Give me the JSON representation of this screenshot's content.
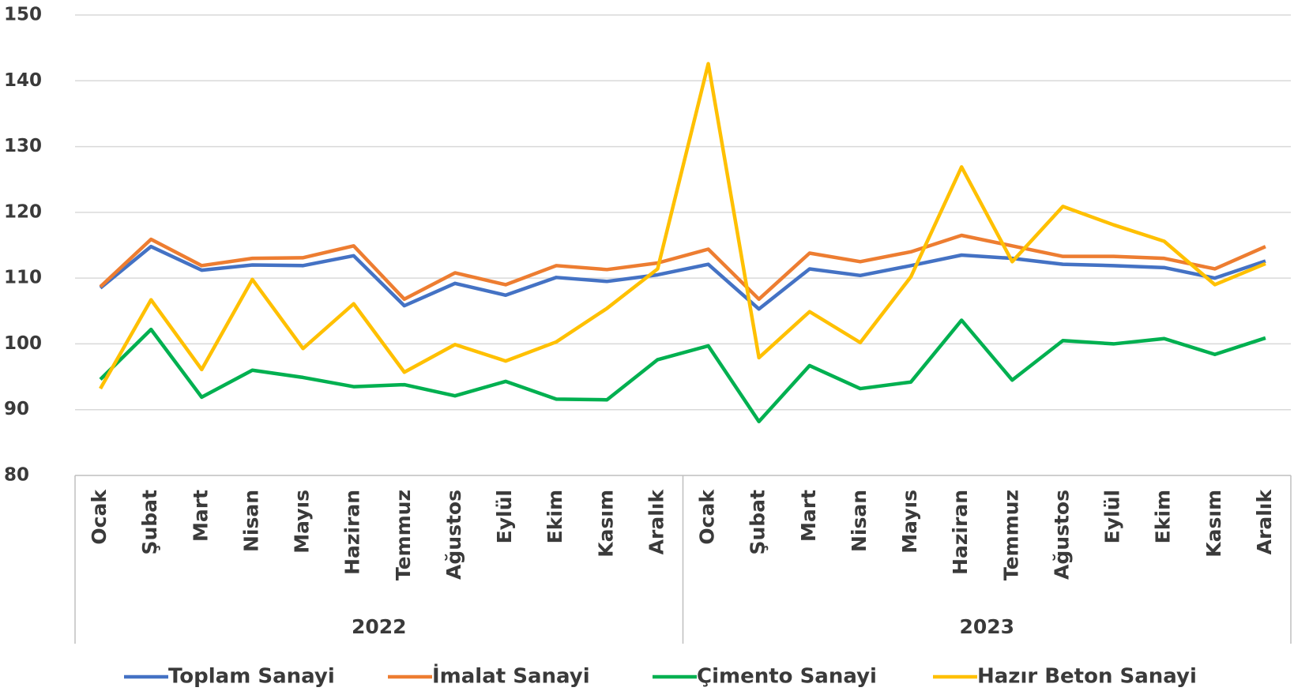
{
  "chart_data": {
    "type": "line",
    "categories": [
      "Ocak",
      "Şubat",
      "Mart",
      "Nisan",
      "Mayıs",
      "Haziran",
      "Temmuz",
      "Ağustos",
      "Eylül",
      "Ekim",
      "Kasım",
      "Aralık",
      "Ocak",
      "Şubat",
      "Mart",
      "Nisan",
      "Mayıs",
      "Haziran",
      "Temmuz",
      "Ağustos",
      "Eylül",
      "Ekim",
      "Kasım",
      "Aralık"
    ],
    "years": [
      "2022",
      "2023"
    ],
    "ylim": [
      80,
      150
    ],
    "yticks": [
      80,
      90,
      100,
      110,
      120,
      130,
      140,
      150
    ],
    "grid": true,
    "legend": "bottom",
    "series": [
      {
        "name": "Toplam Sanayi",
        "color": "#4472c4",
        "values": [
          108.5,
          114.8,
          111.2,
          112.0,
          111.9,
          113.4,
          105.8,
          109.2,
          107.4,
          110.1,
          109.5,
          110.5,
          112.1,
          105.3,
          111.4,
          110.4,
          111.9,
          113.5,
          113.0,
          112.1,
          111.9,
          111.6,
          110.0,
          112.6
        ]
      },
      {
        "name": "İmalat Sanayi",
        "color": "#ed7d31",
        "values": [
          108.7,
          115.9,
          111.9,
          113.0,
          113.1,
          114.9,
          106.8,
          110.8,
          109.0,
          111.9,
          111.3,
          112.3,
          114.4,
          106.8,
          113.8,
          112.5,
          114.0,
          116.5,
          114.9,
          113.3,
          113.3,
          113.0,
          111.4,
          114.8
        ]
      },
      {
        "name": "Çimento Sanayi",
        "color": "#00b050",
        "values": [
          94.6,
          102.2,
          91.9,
          96.0,
          94.9,
          93.5,
          93.8,
          92.1,
          94.3,
          91.6,
          91.5,
          97.6,
          99.7,
          88.2,
          96.7,
          93.2,
          94.2,
          103.6,
          94.5,
          100.5,
          100.0,
          100.8,
          98.4,
          100.9
        ]
      },
      {
        "name": "Hazır Beton Sanayi",
        "color": "#ffc000",
        "values": [
          93.2,
          106.7,
          96.1,
          109.8,
          99.3,
          106.1,
          95.7,
          99.9,
          97.4,
          100.3,
          105.4,
          111.4,
          142.6,
          97.9,
          104.9,
          100.2,
          110.2,
          126.9,
          112.5,
          120.9,
          118.1,
          115.6,
          109.0,
          112.2
        ]
      }
    ]
  }
}
